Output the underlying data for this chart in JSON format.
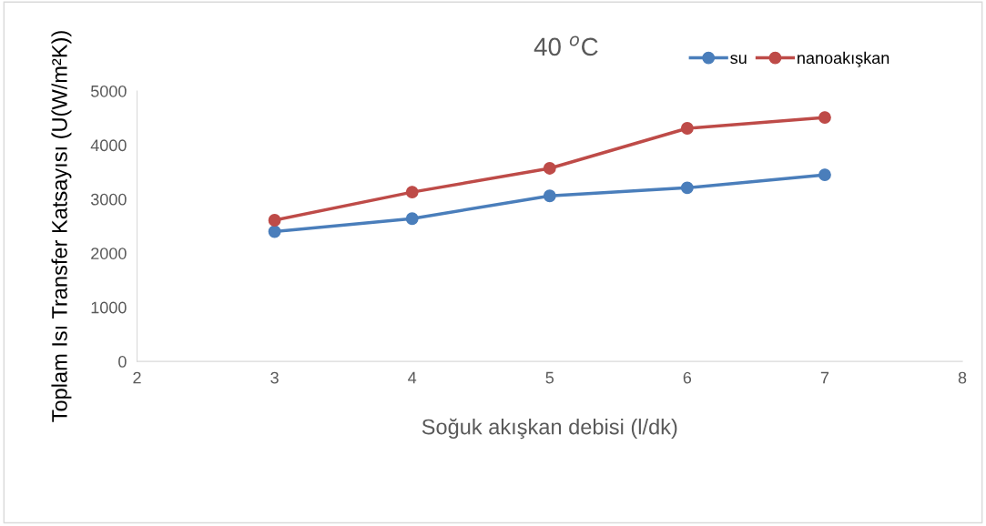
{
  "chart_data": {
    "type": "line",
    "title": "40 $^{o}$C",
    "xlabel": "Soğuk akışkan debisi (l/dk)",
    "ylabel": "Toplam Isı Transfer Katsayısı (U(W/m²K))",
    "x": [
      3,
      4,
      5,
      6,
      7
    ],
    "series": [
      {
        "name": "su",
        "color": "#4a7ebb",
        "values": [
          2400,
          2640,
          3060,
          3210,
          3450
        ]
      },
      {
        "name": "nanoakışkan",
        "color": "#be4b48",
        "values": [
          2610,
          3130,
          3570,
          4310,
          4510
        ]
      }
    ],
    "xlim": [
      2,
      8
    ],
    "xticks": [
      2,
      3,
      4,
      5,
      6,
      7,
      8
    ],
    "ylim": [
      0,
      5000
    ],
    "yticks": [
      0,
      1000,
      2000,
      3000,
      4000,
      5000
    ],
    "grid": false,
    "legend": "top right",
    "marker": "circle",
    "line_style": "solid"
  }
}
